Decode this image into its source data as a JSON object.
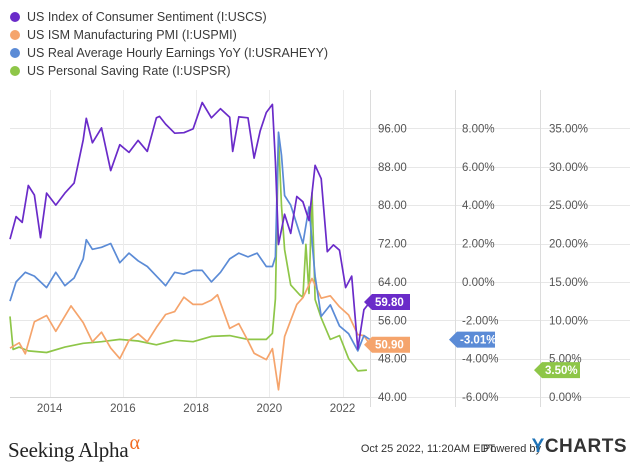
{
  "legend": [
    {
      "label": "US Index of Consumer Sentiment (I:USCS)",
      "color": "#6a2bc9"
    },
    {
      "label": "US ISM Manufacturing PMI (I:USPMI)",
      "color": "#f5a46c"
    },
    {
      "label": "US Real Average Hourly Earnings YoY (I:USRAHEYY)",
      "color": "#5b8bd6"
    },
    {
      "label": "US Personal Saving Rate (I:USPSR)",
      "color": "#8ec648"
    }
  ],
  "footer": {
    "brand": "Seeking Alpha",
    "brand_mark": "α",
    "timestamp": "Oct 25 2022, 11:20AM EDT.",
    "powered_by": "Powered by",
    "ycharts_y": "Y",
    "ycharts_rest": "CHARTS"
  },
  "chart_data": {
    "type": "line",
    "x_ticks": [
      "2014",
      "2016",
      "2018",
      "2020",
      "2022"
    ],
    "xlim": [
      "2012-12",
      "2022-10"
    ],
    "grid": true,
    "axes": [
      {
        "id": "pmi_cs",
        "ticks": [
          "96.00",
          "88.00",
          "80.00",
          "72.00",
          "64.00",
          "56.00",
          "48.00",
          "40.00"
        ],
        "ylim": [
          40,
          104
        ]
      },
      {
        "id": "earn",
        "ticks": [
          "8.00%",
          "6.00%",
          "4.00%",
          "2.00%",
          "0.00%",
          "-2.00%",
          "-4.00%",
          "-6.00%"
        ],
        "ylim": [
          -6.0,
          10.0
        ]
      },
      {
        "id": "save",
        "ticks": [
          "35.00%",
          "30.00%",
          "25.00%",
          "20.00%",
          "15.00%",
          "10.00%",
          "5.00%",
          "0.00%"
        ],
        "ylim": [
          0.0,
          40.0
        ]
      }
    ],
    "series": [
      {
        "name": "US Index of Consumer Sentiment (I:USCS)",
        "color": "#6a2bc9",
        "axis": "pmi_cs",
        "last_label": "59.80",
        "x": [
          "2012-12",
          "2013-02",
          "2013-04",
          "2013-06",
          "2013-08",
          "2013-10",
          "2013-12",
          "2014-03",
          "2014-06",
          "2014-09",
          "2014-12",
          "2015-01",
          "2015-03",
          "2015-06",
          "2015-09",
          "2015-12",
          "2016-03",
          "2016-06",
          "2016-09",
          "2016-12",
          "2017-01",
          "2017-03",
          "2017-06",
          "2017-09",
          "2017-12",
          "2018-03",
          "2018-06",
          "2018-09",
          "2018-12",
          "2019-01",
          "2019-03",
          "2019-06",
          "2019-08",
          "2019-10",
          "2019-12",
          "2020-02",
          "2020-03",
          "2020-04",
          "2020-06",
          "2020-08",
          "2020-10",
          "2020-12",
          "2021-02",
          "2021-04",
          "2021-06",
          "2021-08",
          "2021-10",
          "2021-12",
          "2022-02",
          "2022-04",
          "2022-06",
          "2022-08",
          "2022-10"
        ],
        "values": [
          72.9,
          77.6,
          76.4,
          84.1,
          82.1,
          73.2,
          82.5,
          80.0,
          82.5,
          84.6,
          93.6,
          98.1,
          93.0,
          96.1,
          87.2,
          92.6,
          91.0,
          93.5,
          91.2,
          98.2,
          98.5,
          96.9,
          95.0,
          95.1,
          95.9,
          101.4,
          98.2,
          100.1,
          98.3,
          91.2,
          98.4,
          98.2,
          89.8,
          95.5,
          99.3,
          101.0,
          89.1,
          71.8,
          78.1,
          74.1,
          81.8,
          80.7,
          76.8,
          88.3,
          85.5,
          70.3,
          71.7,
          70.6,
          62.8,
          65.2,
          50.0,
          58.2,
          59.8
        ]
      },
      {
        "name": "US ISM Manufacturing PMI (I:USPMI)",
        "color": "#f5a46c",
        "axis": "pmi_cs",
        "last_label": "50.90",
        "x": [
          "2012-12",
          "2013-03",
          "2013-05",
          "2013-08",
          "2013-12",
          "2014-03",
          "2014-08",
          "2014-12",
          "2015-03",
          "2015-06",
          "2015-09",
          "2015-12",
          "2016-03",
          "2016-06",
          "2016-09",
          "2016-12",
          "2017-03",
          "2017-06",
          "2017-09",
          "2017-12",
          "2018-03",
          "2018-06",
          "2018-08",
          "2018-12",
          "2019-03",
          "2019-06",
          "2019-08",
          "2019-12",
          "2020-02",
          "2020-04",
          "2020-06",
          "2020-08",
          "2020-10",
          "2020-12",
          "2021-03",
          "2021-06",
          "2021-09",
          "2021-12",
          "2022-03",
          "2022-06",
          "2022-08",
          "2022-10"
        ],
        "values": [
          50.2,
          51.3,
          49.0,
          55.7,
          57.0,
          53.7,
          59.0,
          55.5,
          51.5,
          53.5,
          50.2,
          48.0,
          51.8,
          53.2,
          51.5,
          54.5,
          57.2,
          57.8,
          60.8,
          59.3,
          59.3,
          60.2,
          61.3,
          54.3,
          55.3,
          51.7,
          49.1,
          47.8,
          50.1,
          41.5,
          52.6,
          56.0,
          59.3,
          60.7,
          64.7,
          60.6,
          61.1,
          58.8,
          57.1,
          53.0,
          52.8,
          50.9
        ]
      },
      {
        "name": "US Real Average Hourly Earnings YoY (I:USRAHEYY)",
        "color": "#5b8bd6",
        "axis": "earn",
        "last_label": "-3.01%",
        "x": [
          "2012-12",
          "2013-02",
          "2013-05",
          "2013-08",
          "2013-12",
          "2014-03",
          "2014-06",
          "2014-09",
          "2014-12",
          "2015-01",
          "2015-03",
          "2015-06",
          "2015-09",
          "2015-12",
          "2016-03",
          "2016-06",
          "2016-09",
          "2016-12",
          "2017-03",
          "2017-06",
          "2017-09",
          "2017-12",
          "2018-03",
          "2018-06",
          "2018-09",
          "2018-12",
          "2019-03",
          "2019-06",
          "2019-09",
          "2019-12",
          "2020-02",
          "2020-03",
          "2020-04",
          "2020-05",
          "2020-06",
          "2020-08",
          "2020-10",
          "2020-12",
          "2021-02",
          "2021-04",
          "2021-06",
          "2021-09",
          "2021-12",
          "2022-03",
          "2022-06",
          "2022-08",
          "2022-10"
        ],
        "values": [
          -1.0,
          0.0,
          0.5,
          0.3,
          -0.3,
          0.5,
          -0.2,
          0.2,
          1.2,
          2.2,
          1.7,
          1.8,
          2.0,
          1.0,
          1.5,
          1.1,
          0.8,
          0.3,
          -0.2,
          0.5,
          0.4,
          0.6,
          0.6,
          0.0,
          0.5,
          1.2,
          1.5,
          1.3,
          1.5,
          0.8,
          0.8,
          1.3,
          7.8,
          6.6,
          4.5,
          4.0,
          3.0,
          2.0,
          3.9,
          0.3,
          -1.8,
          -1.2,
          -2.3,
          -2.7,
          -3.6,
          -2.8,
          -3.01
        ]
      },
      {
        "name": "US Personal Saving Rate (I:USPSR)",
        "color": "#8ec648",
        "axis": "save",
        "last_label": "3.50%",
        "x": [
          "2012-12",
          "2013-01",
          "2013-03",
          "2013-06",
          "2013-12",
          "2014-06",
          "2014-12",
          "2015-06",
          "2015-12",
          "2016-06",
          "2016-12",
          "2017-06",
          "2017-12",
          "2018-06",
          "2018-12",
          "2019-06",
          "2019-12",
          "2020-02",
          "2020-03",
          "2020-04",
          "2020-05",
          "2020-06",
          "2020-08",
          "2020-11",
          "2020-12",
          "2021-01",
          "2021-02",
          "2021-03",
          "2021-04",
          "2021-06",
          "2021-09",
          "2021-12",
          "2022-03",
          "2022-06",
          "2022-09"
        ],
        "values": [
          10.5,
          6.2,
          6.5,
          6.0,
          5.8,
          6.5,
          7.0,
          7.2,
          7.5,
          7.3,
          6.8,
          7.4,
          7.2,
          7.9,
          8.0,
          7.5,
          7.5,
          8.3,
          12.8,
          33.8,
          24.9,
          19.2,
          14.6,
          13.3,
          13.0,
          19.9,
          13.5,
          26.6,
          12.7,
          10.3,
          7.5,
          8.0,
          5.0,
          3.4,
          3.5
        ]
      }
    ]
  }
}
